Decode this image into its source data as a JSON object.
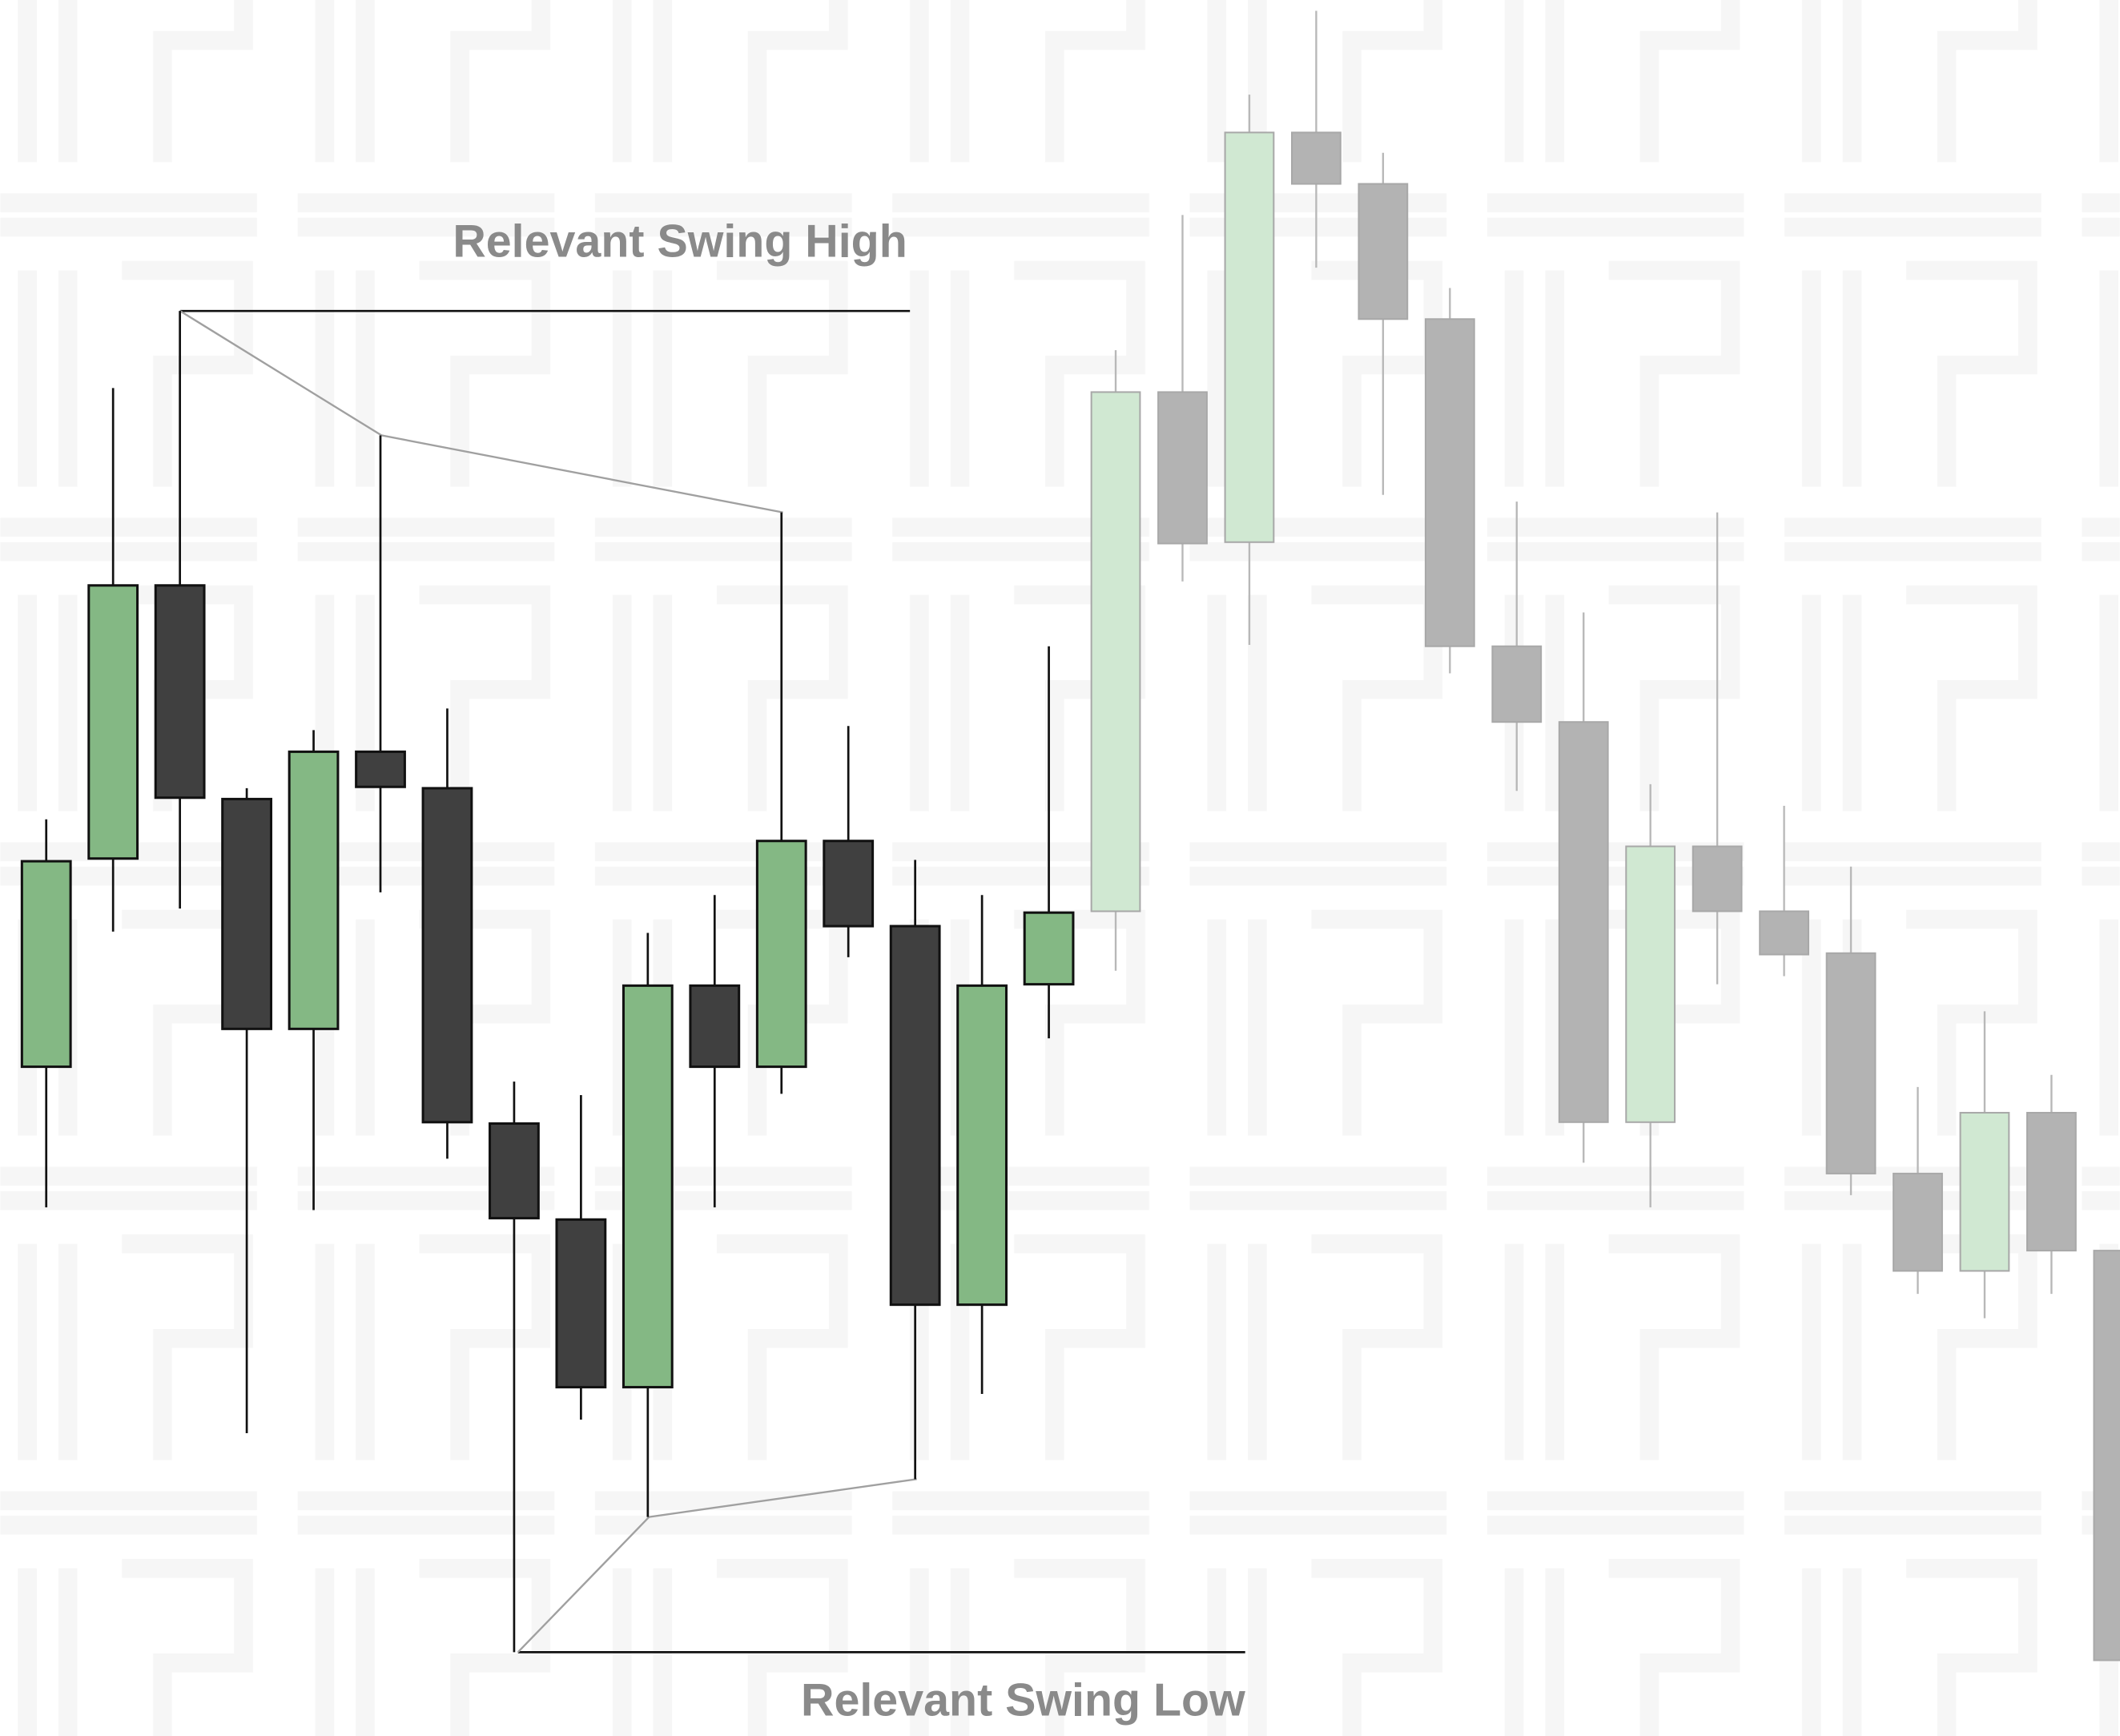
{
  "chart_data": {
    "type": "candlestick",
    "annotations": [
      "Relevant Swing High",
      "Relevant Swing Low"
    ],
    "open": [
      495,
      649,
      851,
      693,
      523,
      728,
      701,
      453,
      382,
      258,
      555,
      495,
      662,
      599,
      319,
      556,
      610,
      994,
      883,
      1186,
      1148,
      1048,
      806,
      750,
      454,
      658,
      610,
      579,
      416,
      344,
      461,
      359
    ],
    "high": [
      678,
      997,
      1054,
      701,
      744,
      962,
      760,
      484,
      474,
      594,
      622,
      905,
      747,
      648,
      622,
      806,
      1025,
      1125,
      1214,
      1276,
      1171,
      1071,
      913,
      831,
      704,
      905,
      688,
      643,
      480,
      536,
      489,
      359
    ],
    "low": [
      391,
      595,
      612,
      224,
      389,
      624,
      427,
      62,
      234,
      162,
      391,
      475,
      576,
      190,
      253,
      516,
      566,
      854,
      807,
      1086,
      918,
      786,
      699,
      424,
      391,
      556,
      562,
      400,
      327,
      309,
      327,
      56
    ],
    "close": [
      647,
      851,
      694,
      523,
      728,
      702,
      454,
      383,
      258,
      555,
      495,
      662,
      599,
      319,
      555,
      609,
      994,
      882,
      1186,
      1148,
      1048,
      806,
      750,
      454,
      658,
      610,
      578,
      416,
      344,
      461,
      359,
      56
    ],
    "colors": [
      "#84b884",
      "#84b884",
      "#404040",
      "#404040",
      "#84b884",
      "#404040",
      "#404040",
      "#404040",
      "#404040",
      "#84b884",
      "#404040",
      "#84b884",
      "#404040",
      "#404040",
      "#84b884",
      "#84b884",
      "#d0e8d2",
      "#b3b3b3",
      "#d0e8d2",
      "#b3b3b3",
      "#b3b3b3",
      "#b3b3b3",
      "#b3b3b3",
      "#b3b3b3",
      "#d0e8d2",
      "#b3b3b3",
      "#b3b3b3",
      "#b3b3b3",
      "#b3b3b3",
      "#d0e8d2",
      "#b3b3b3",
      "#b3b3b3"
    ],
    "ylim": [
      0,
      1284
    ]
  }
}
